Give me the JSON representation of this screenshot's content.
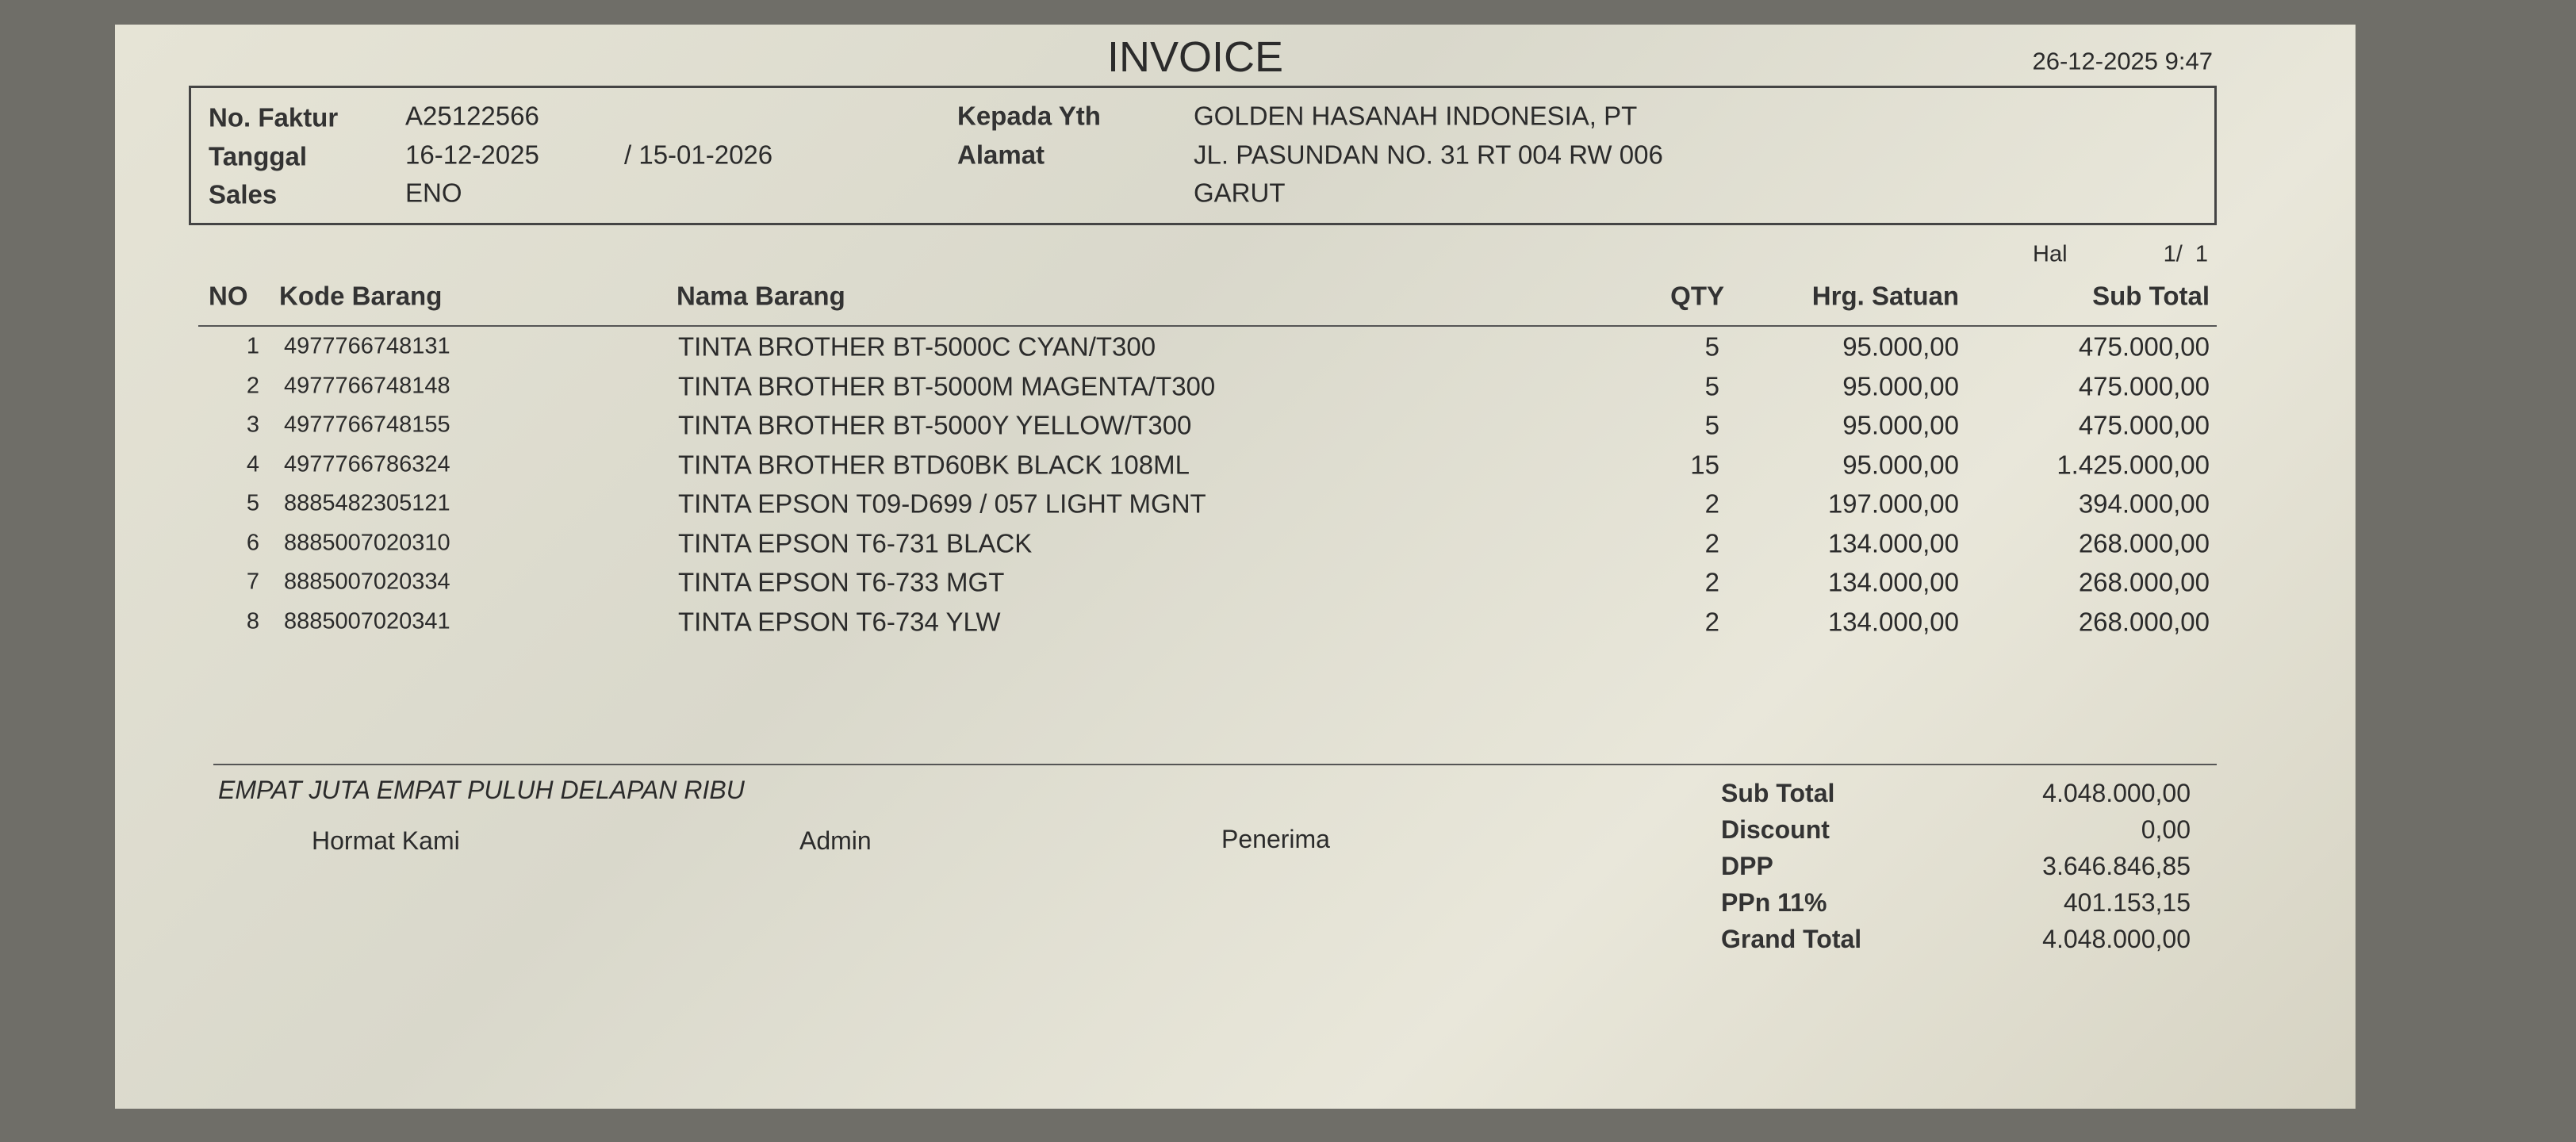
{
  "header": {
    "title": "INVOICE",
    "datetime": "26-12-2025 9:47"
  },
  "info": {
    "no_faktur_label": "No. Faktur",
    "no_faktur": "A25122566",
    "tanggal_label": "Tanggal",
    "tanggal": "16-12-2025",
    "jatuh_tempo": "/ 15-01-2026",
    "sales_label": "Sales",
    "sales": "ENO",
    "kepada_label": "Kepada Yth",
    "kepada": "GOLDEN HASANAH INDONESIA, PT",
    "alamat_label": "Alamat",
    "alamat_1": "JL. PASUNDAN NO. 31 RT 004 RW 006",
    "alamat_2": "GARUT"
  },
  "page": {
    "label": "Hal",
    "number": "1/  1"
  },
  "table": {
    "columns": [
      "NO",
      "Kode Barang",
      "Nama Barang",
      "QTY",
      "Hrg. Satuan",
      "Sub Total"
    ],
    "rows": [
      [
        "1",
        "4977766748131",
        "TINTA BROTHER BT-5000C CYAN/T300",
        "5",
        "95.000,00",
        "475.000,00"
      ],
      [
        "2",
        "4977766748148",
        "TINTA BROTHER BT-5000M MAGENTA/T300",
        "5",
        "95.000,00",
        "475.000,00"
      ],
      [
        "3",
        "4977766748155",
        "TINTA BROTHER BT-5000Y YELLOW/T300",
        "5",
        "95.000,00",
        "475.000,00"
      ],
      [
        "4",
        "4977766786324",
        "TINTA BROTHER BTD60BK BLACK 108ML",
        "15",
        "95.000,00",
        "1.425.000,00"
      ],
      [
        "5",
        "8885482305121",
        "TINTA EPSON T09-D699 / 057 LIGHT MGNT",
        "2",
        "197.000,00",
        "394.000,00"
      ],
      [
        "6",
        "8885007020310",
        "TINTA EPSON T6-731 BLACK",
        "2",
        "134.000,00",
        "268.000,00"
      ],
      [
        "7",
        "8885007020334",
        "TINTA EPSON T6-733 MGT",
        "2",
        "134.000,00",
        "268.000,00"
      ],
      [
        "8",
        "8885007020341",
        "TINTA EPSON T6-734 YLW",
        "2",
        "134.000,00",
        "268.000,00"
      ]
    ]
  },
  "footer": {
    "terbilang": "EMPAT JUTA EMPAT PULUH DELAPAN RIBU",
    "signatures": [
      "Hormat Kami",
      "Admin",
      "Penerima"
    ],
    "totals": [
      {
        "label": "Sub Total",
        "value": "4.048.000,00"
      },
      {
        "label": "Discount",
        "value": "0,00"
      },
      {
        "label": "DPP",
        "value": "3.646.846,85"
      },
      {
        "label": "PPn 11%",
        "value": "401.153,15"
      },
      {
        "label": "Grand Total",
        "value": "4.048.000,00"
      }
    ]
  }
}
